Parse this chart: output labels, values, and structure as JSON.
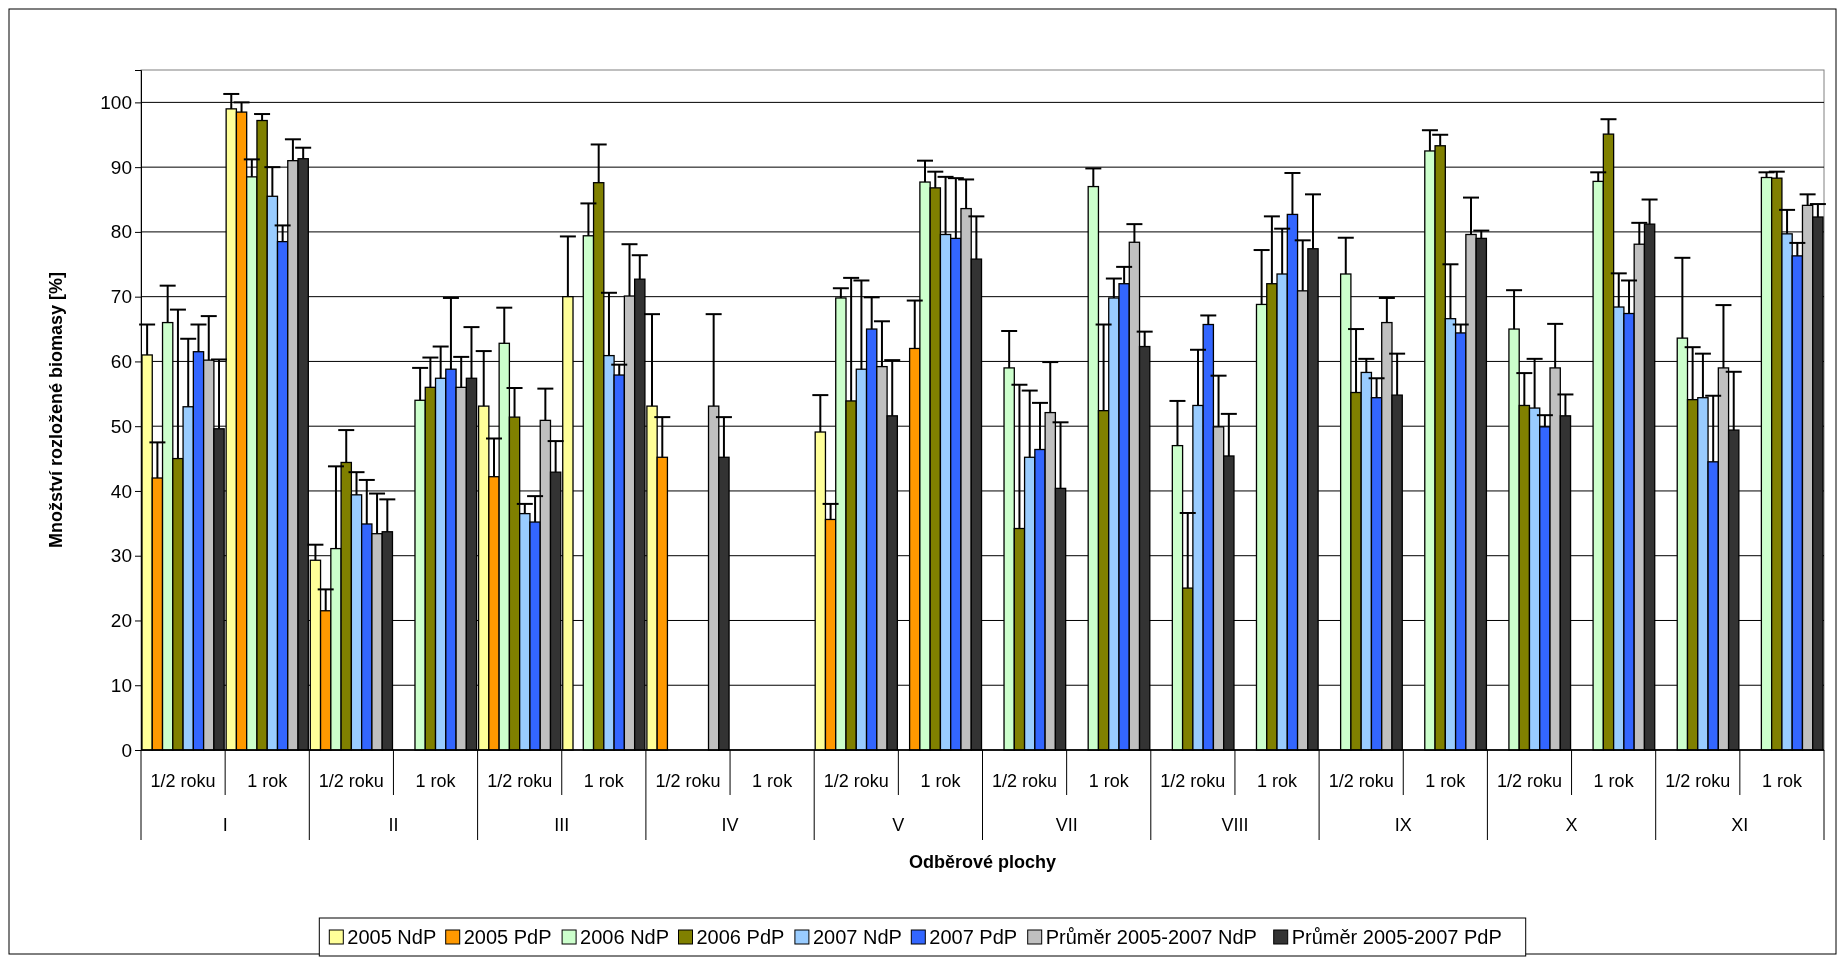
{
  "chart_data": {
    "type": "bar",
    "xlabel": "Odběrové plochy",
    "ylabel": "Množství rozložené biomasy [%]",
    "categories": [
      "1/2 roku",
      "1 rok",
      "1/2 roku",
      "1 rok",
      "1/2 roku",
      "1 rok",
      "1/2 roku",
      "1 rok",
      "1/2 roku",
      "1 rok",
      "1/2 roku",
      "1 rok",
      "1/2 roku",
      "1 rok",
      "1/2 roku",
      "1 rok",
      "1/2 roku",
      "1 rok",
      "1/2 roku",
      "1 rok"
    ],
    "annotations": [
      "I",
      "II",
      "III",
      "IV",
      "V",
      "VII",
      "VIII",
      "IX",
      "X",
      "XI"
    ],
    "ylim": [
      0,
      105
    ],
    "yticks": [
      0,
      10,
      20,
      30,
      40,
      50,
      60,
      70,
      80,
      90,
      100
    ],
    "grid": "y",
    "legend": "bottom",
    "series": [
      {
        "name": "2005 NdP",
        "color": "#ffff99",
        "values": [
          61,
          99,
          29.3,
          null,
          53.1,
          70,
          53.1,
          null,
          49.1,
          null,
          null,
          null,
          null,
          null,
          null,
          null,
          null,
          null,
          null,
          null
        ],
        "errors": [
          [
            61,
            65.7
          ],
          [
            99,
            101.3
          ],
          [
            29.3,
            31.7
          ],
          null,
          [
            53.1,
            61.6
          ],
          [
            70,
            79.3
          ],
          [
            53.1,
            67.3
          ],
          null,
          [
            49.1,
            54.8
          ],
          null,
          null,
          null,
          null,
          null,
          null,
          null,
          null,
          null,
          null,
          null
        ]
      },
      {
        "name": "2005 PdP",
        "color": "#ff9900",
        "values": [
          42,
          98.5,
          21.5,
          null,
          42.2,
          null,
          45.2,
          null,
          35.6,
          62,
          null,
          null,
          null,
          null,
          null,
          null,
          null,
          null,
          null,
          null
        ],
        "errors": [
          [
            42,
            47.5
          ],
          [
            98.5,
            100
          ],
          [
            21.5,
            24.8
          ],
          null,
          [
            42.2,
            48.1
          ],
          null,
          [
            45.2,
            51.4
          ],
          null,
          [
            35.6,
            38
          ],
          [
            62,
            69.4
          ],
          null,
          null,
          null,
          null,
          null,
          null,
          null,
          null,
          null,
          null
        ]
      },
      {
        "name": "2006 NdP",
        "color": "#ccffcc",
        "values": [
          66,
          88.5,
          31.1,
          54,
          62.8,
          79.4,
          null,
          null,
          69.8,
          87.7,
          59,
          87,
          47,
          68.8,
          73.5,
          92.5,
          65,
          87.8,
          63.6,
          88.4
        ],
        "errors": [
          [
            66,
            71.7
          ],
          [
            88.5,
            91.2
          ],
          [
            31.1,
            43.8
          ],
          [
            54,
            59
          ],
          [
            62.8,
            68.3
          ],
          [
            79.4,
            84.4
          ],
          null,
          null,
          [
            69.8,
            71.3
          ],
          [
            87.7,
            91
          ],
          [
            59,
            64.7
          ],
          [
            87,
            89.8
          ],
          [
            47,
            53.9
          ],
          [
            68.8,
            77.2
          ],
          [
            73.5,
            79.1
          ],
          [
            92.5,
            95.7
          ],
          [
            65,
            71
          ],
          [
            87.8,
            89.2
          ],
          [
            63.6,
            76
          ],
          [
            88.4,
            89.2
          ]
        ]
      },
      {
        "name": "2006 PdP",
        "color": "#808000",
        "values": [
          45,
          97.2,
          44.4,
          56,
          51.4,
          87.6,
          null,
          null,
          53.9,
          86.8,
          34.2,
          52.4,
          25,
          72,
          55.2,
          93.3,
          53.2,
          95.1,
          54.1,
          88.3
        ],
        "errors": [
          [
            45,
            68
          ],
          [
            97.2,
            98.2
          ],
          [
            44.4,
            49.4
          ],
          [
            56,
            60.6
          ],
          [
            51.4,
            55.9
          ],
          [
            87.6,
            93.5
          ],
          null,
          null,
          [
            53.9,
            72.9
          ],
          [
            86.8,
            89.3
          ],
          [
            34.2,
            56.4
          ],
          [
            52.4,
            65.7
          ],
          [
            25,
            36.6
          ],
          [
            72,
            82.4
          ],
          [
            55.2,
            65
          ],
          [
            93.3,
            95
          ],
          [
            53.2,
            58.2
          ],
          [
            95.1,
            97.4
          ],
          [
            54.1,
            62.2
          ],
          [
            88.3,
            89.3
          ]
        ]
      },
      {
        "name": "2007 NdP",
        "color": "#99ccff",
        "values": [
          53,
          85.5,
          39.4,
          57.4,
          36.5,
          60.9,
          null,
          null,
          58.8,
          79.6,
          45.2,
          69.8,
          53.2,
          73.5,
          58.3,
          66.6,
          52.8,
          68.4,
          54.4,
          79.7
        ],
        "errors": [
          [
            53,
            63.5
          ],
          [
            85.5,
            90
          ],
          [
            39.4,
            42.9
          ],
          [
            57.4,
            62.3
          ],
          [
            36.5,
            38
          ],
          [
            60.9,
            70.6
          ],
          null,
          null,
          [
            58.8,
            72.5
          ],
          [
            79.6,
            88.5
          ],
          [
            45.2,
            55.5
          ],
          [
            69.8,
            72.8
          ],
          [
            53.2,
            61.8
          ],
          [
            73.5,
            80.5
          ],
          [
            58.3,
            60.4
          ],
          [
            66.6,
            75
          ],
          [
            52.8,
            60.4
          ],
          [
            68.4,
            73.6
          ],
          [
            54.4,
            61.2
          ],
          [
            79.7,
            83.4
          ]
        ]
      },
      {
        "name": "2007 PdP",
        "color": "#3366ff",
        "values": [
          61.5,
          78.5,
          34.9,
          58.8,
          35.2,
          57.9,
          null,
          null,
          65,
          79,
          46.4,
          72,
          65.7,
          82.7,
          54.4,
          64.4,
          49.9,
          67.4,
          44.5,
          76.3
        ],
        "errors": [
          [
            61.5,
            65.7
          ],
          [
            78.5,
            81
          ],
          [
            34.9,
            41.7
          ],
          [
            58.8,
            69.8
          ],
          [
            35.2,
            39.2
          ],
          [
            57.9,
            59.5
          ],
          null,
          null,
          [
            65,
            69.9
          ],
          [
            79,
            88.3
          ],
          [
            46.4,
            53.6
          ],
          [
            72,
            74.6
          ],
          [
            65.7,
            67.1
          ],
          [
            82.7,
            89.1
          ],
          [
            54.4,
            57.4
          ],
          [
            64.4,
            65.7
          ],
          [
            49.9,
            51.7
          ],
          [
            67.4,
            72.5
          ],
          [
            44.5,
            54.7
          ],
          [
            76.3,
            78.3
          ]
        ]
      },
      {
        "name": "Průměr 2005-2007 NdP",
        "color": "#c0c0c0",
        "values": [
          60.2,
          91,
          33.4,
          56,
          50.9,
          70.1,
          53.1,
          null,
          59.2,
          83.6,
          52.1,
          78.4,
          49.9,
          70.9,
          66,
          79.6,
          59,
          78.1,
          59,
          84.1
        ],
        "errors": [
          [
            60.2,
            67
          ],
          [
            91,
            94.3
          ],
          [
            33.4,
            39.6
          ],
          [
            56,
            60.7
          ],
          [
            50.9,
            55.8
          ],
          [
            70.1,
            78.1
          ],
          [
            53.1,
            67.3
          ],
          null,
          [
            59.2,
            66.2
          ],
          [
            83.6,
            88.1
          ],
          [
            52.1,
            59.9
          ],
          [
            78.4,
            81.2
          ],
          [
            49.9,
            57.8
          ],
          [
            70.9,
            78.7
          ],
          [
            66,
            69.8
          ],
          [
            79.6,
            85.3
          ],
          [
            59,
            65.8
          ],
          [
            78.1,
            81.4
          ],
          [
            59,
            68.7
          ],
          [
            84.1,
            85.8
          ]
        ]
      },
      {
        "name": "Průměr 2005-2007 PdP",
        "color": "#333333",
        "values": [
          49.6,
          91.3,
          33.7,
          57.4,
          42.9,
          72.7,
          45.2,
          null,
          51.6,
          75.8,
          40.4,
          62.3,
          45.4,
          77.4,
          54.8,
          79,
          51.6,
          81.2,
          49.4,
          82.3
        ],
        "errors": [
          [
            49.6,
            60.3
          ],
          [
            91.3,
            93
          ],
          [
            33.7,
            38.7
          ],
          [
            57.4,
            65.3
          ],
          [
            42.9,
            47.7
          ],
          [
            72.7,
            76.4
          ],
          [
            45.2,
            51.4
          ],
          null,
          [
            51.6,
            60.2
          ],
          [
            75.8,
            82.4
          ],
          [
            40.4,
            50.6
          ],
          [
            62.3,
            64.6
          ],
          [
            45.4,
            51.9
          ],
          [
            77.4,
            85.8
          ],
          [
            54.8,
            61.2
          ],
          [
            79,
            80.2
          ],
          [
            51.6,
            54.9
          ],
          [
            81.2,
            85
          ],
          [
            49.4,
            58.4
          ],
          [
            82.3,
            84.3
          ]
        ]
      }
    ]
  }
}
